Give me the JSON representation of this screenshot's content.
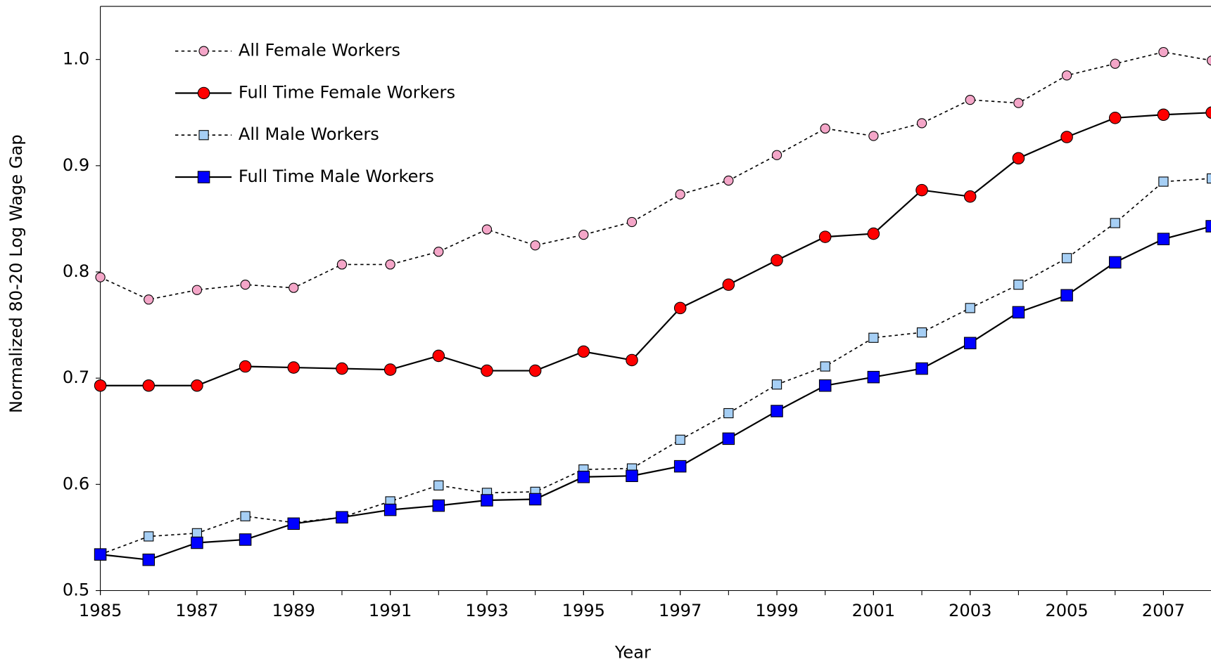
{
  "chart_data": {
    "type": "line",
    "x_label": "Year",
    "y_label": "Normalized 80-20 Log Wage Gap",
    "x": [
      1985,
      1986,
      1987,
      1988,
      1989,
      1990,
      1991,
      1992,
      1993,
      1994,
      1995,
      1996,
      1997,
      1998,
      1999,
      2000,
      2001,
      2002,
      2003,
      2004,
      2005,
      2006,
      2007,
      2008
    ],
    "xlim": [
      1985,
      2008
    ],
    "xticks": [
      1985,
      1987,
      1989,
      1991,
      1993,
      1995,
      1997,
      1999,
      2001,
      2003,
      2005,
      2007
    ],
    "ylim": [
      0.5,
      1.05
    ],
    "yticks": [
      0.5,
      0.6,
      0.7,
      0.8,
      0.9,
      {
        "value": 1,
        "label": "1.0"
      }
    ],
    "legend": "top-left",
    "series": [
      {
        "name": "All Female Workers",
        "color": "#f4a6c8",
        "dashed": true,
        "marker": "circle",
        "values": [
          0.795,
          0.774,
          0.783,
          0.788,
          0.785,
          0.807,
          0.807,
          0.819,
          0.84,
          0.825,
          0.835,
          0.847,
          0.873,
          0.886,
          0.91,
          0.935,
          0.928,
          0.94,
          0.962,
          0.959,
          0.985,
          0.996,
          1.007,
          0.999
        ]
      },
      {
        "name": "Full Time Female Workers",
        "color": "#ff0000",
        "dashed": false,
        "marker": "circle",
        "values": [
          0.693,
          0.693,
          0.693,
          0.711,
          0.71,
          0.709,
          0.708,
          0.721,
          0.707,
          0.707,
          0.725,
          0.717,
          0.766,
          0.788,
          0.811,
          0.833,
          0.836,
          0.877,
          0.871,
          0.907,
          0.927,
          0.945,
          0.948,
          0.95
        ]
      },
      {
        "name": "All Male Workers",
        "color": "#a6cff5",
        "dashed": true,
        "marker": "square",
        "values": [
          0.534,
          0.551,
          0.554,
          0.57,
          0.564,
          0.569,
          0.584,
          0.599,
          0.592,
          0.593,
          0.614,
          0.615,
          0.642,
          0.667,
          0.694,
          0.711,
          0.738,
          0.743,
          0.766,
          0.788,
          0.813,
          0.846,
          0.885,
          0.888
        ]
      },
      {
        "name": "Full Time Male Workers",
        "color": "#0000ff",
        "dashed": false,
        "marker": "square",
        "values": [
          0.534,
          0.529,
          0.545,
          0.548,
          0.563,
          0.569,
          0.576,
          0.58,
          0.585,
          0.586,
          0.607,
          0.608,
          0.617,
          0.643,
          0.669,
          0.693,
          0.701,
          0.709,
          0.733,
          0.762,
          0.778,
          0.809,
          0.831,
          0.843
        ]
      }
    ]
  }
}
